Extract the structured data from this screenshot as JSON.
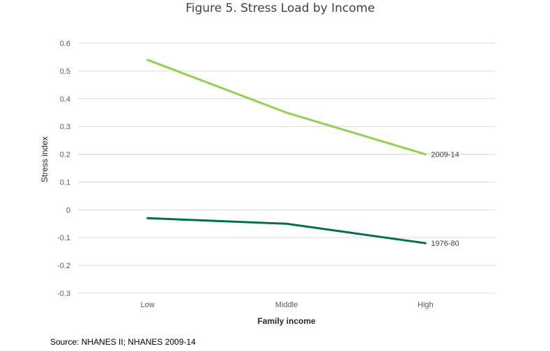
{
  "chart_data": {
    "type": "line",
    "title": "Figure 5. Stress Load by Income",
    "xlabel": "Family income",
    "ylabel": "Stress index",
    "categories": [
      "Low",
      "Middle",
      "High"
    ],
    "ylim": [
      -0.3,
      0.6
    ],
    "yticks": [
      -0.3,
      -0.2,
      -0.1,
      0,
      0.1,
      0.2,
      0.3,
      0.4,
      0.5,
      0.6
    ],
    "grid": true,
    "legend": "none",
    "series": [
      {
        "name": "2009-14",
        "values": [
          0.54,
          0.35,
          0.2
        ],
        "color": "#92d050"
      },
      {
        "name": "1976-80",
        "values": [
          -0.03,
          -0.05,
          -0.12
        ],
        "color": "#00704a"
      }
    ]
  },
  "source": "Source: NHANES II; NHANES 2009-14"
}
